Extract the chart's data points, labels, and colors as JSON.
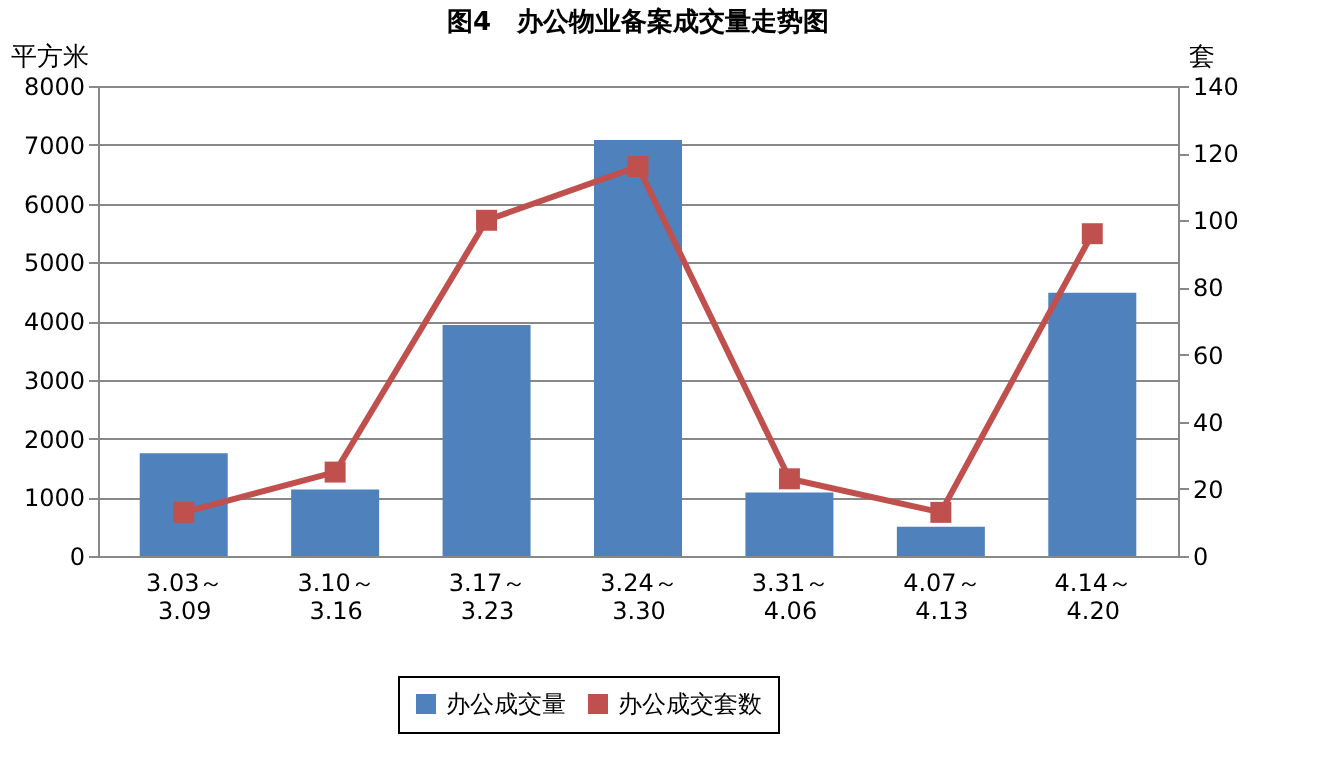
{
  "chart_data": {
    "type": "bar",
    "title": "图4　办公物业备案成交量走势图",
    "ylabel": "平方米",
    "y2label": "套",
    "categories": [
      "3.03～\n3.09",
      "3.10～\n3.16",
      "3.17～\n3.23",
      "3.24～\n3.30",
      "3.31～\n4.06",
      "4.07～\n4.13",
      "4.14～\n4.20"
    ],
    "series": [
      {
        "name": "办公成交量",
        "color": "#4f81bd",
        "values": [
          1750,
          1130,
          3930,
          7080,
          1080,
          500,
          4480
        ]
      },
      {
        "name": "办公成交套数",
        "color": "#c0504d",
        "type": "line",
        "axis": "y2",
        "marker": "square",
        "values": [
          13,
          25,
          100,
          116,
          23,
          13,
          96
        ]
      }
    ],
    "ylim": [
      0,
      8000
    ],
    "yticks": [
      0,
      1000,
      2000,
      3000,
      4000,
      5000,
      6000,
      7000,
      8000
    ],
    "y2lim": [
      0,
      140
    ],
    "y2ticks": [
      0,
      20,
      40,
      60,
      80,
      100,
      120,
      140
    ],
    "grid": "y",
    "legend": "bottom"
  }
}
